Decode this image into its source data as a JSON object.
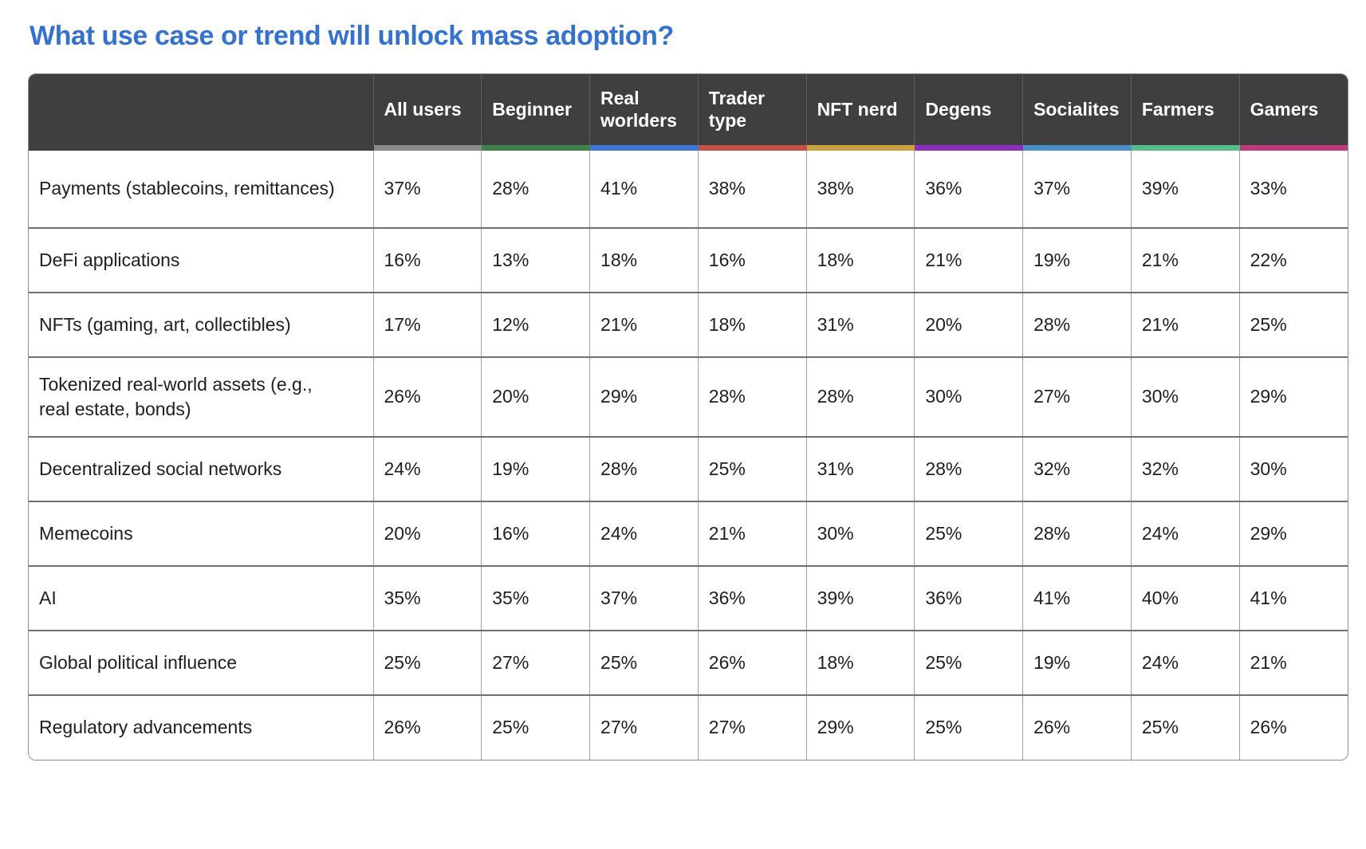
{
  "page": {
    "title": "What use case or trend will unlock mass adoption?"
  },
  "colors": {
    "title_blue": "#3372d3",
    "header_background": "#3f3f3f",
    "column_accents": {
      "all_users": "#8b8b8b",
      "beginner": "#42804c",
      "real_worlders": "#3b77d9",
      "trader_type": "#c65043",
      "nft_nerd": "#caa23b",
      "degens": "#8c2ec1",
      "socialites": "#4a90c8",
      "farmers": "#53be8c",
      "gamers": "#bf3a76"
    }
  },
  "chart_data": {
    "type": "table",
    "title": "What use case or trend will unlock mass adoption?",
    "columns": [
      "All users",
      "Beginner",
      "Real worlders",
      "Trader type",
      "NFT nerd",
      "Degens",
      "Socialites",
      "Farmers",
      "Gamers"
    ],
    "column_colors": [
      "#8b8b8b",
      "#42804c",
      "#3b77d9",
      "#c65043",
      "#caa23b",
      "#8c2ec1",
      "#4a90c8",
      "#53be8c",
      "#bf3a76"
    ],
    "rows": [
      {
        "label": "Payments (stablecoins, remittances)",
        "values": [
          "37%",
          "28%",
          "41%",
          "38%",
          "38%",
          "36%",
          "37%",
          "39%",
          "33%"
        ]
      },
      {
        "label": "DeFi applications",
        "values": [
          "16%",
          "13%",
          "18%",
          "16%",
          "18%",
          "21%",
          "19%",
          "21%",
          "22%"
        ]
      },
      {
        "label": "NFTs (gaming, art, collectibles)",
        "values": [
          "17%",
          "12%",
          "21%",
          "18%",
          "31%",
          "20%",
          "28%",
          "21%",
          "25%"
        ]
      },
      {
        "label": "Tokenized real-world assets (e.g., real estate, bonds)",
        "values": [
          "26%",
          "20%",
          "29%",
          "28%",
          "28%",
          "30%",
          "27%",
          "30%",
          "29%"
        ]
      },
      {
        "label": "Decentralized social networks",
        "values": [
          "24%",
          "19%",
          "28%",
          "25%",
          "31%",
          "28%",
          "32%",
          "32%",
          "30%"
        ]
      },
      {
        "label": "Memecoins",
        "values": [
          "20%",
          "16%",
          "24%",
          "21%",
          "30%",
          "25%",
          "28%",
          "24%",
          "29%"
        ]
      },
      {
        "label": "AI",
        "values": [
          "35%",
          "35%",
          "37%",
          "36%",
          "39%",
          "36%",
          "41%",
          "40%",
          "41%"
        ]
      },
      {
        "label": "Global political influence",
        "values": [
          "25%",
          "27%",
          "25%",
          "26%",
          "18%",
          "25%",
          "19%",
          "24%",
          "21%"
        ]
      },
      {
        "label": "Regulatory advancements",
        "values": [
          "26%",
          "25%",
          "27%",
          "27%",
          "29%",
          "25%",
          "26%",
          "25%",
          "26%"
        ]
      }
    ]
  }
}
